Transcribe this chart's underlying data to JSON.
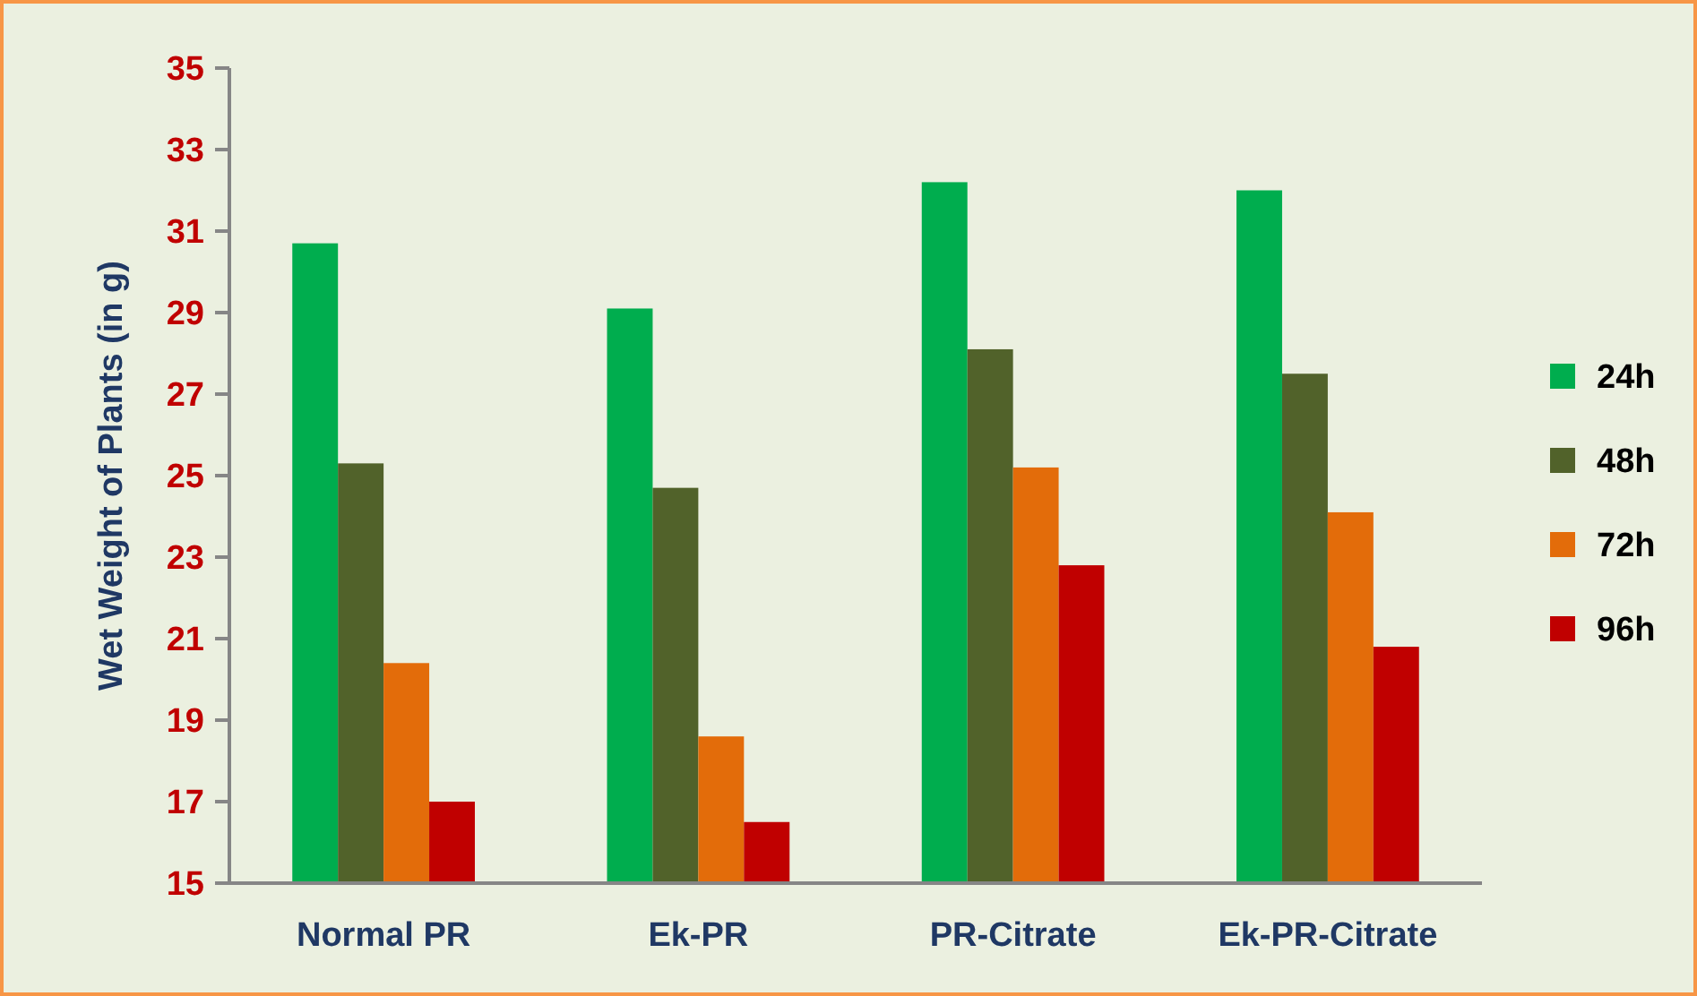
{
  "chart_data": {
    "type": "bar",
    "ylabel": "Wet Weight of Plants (in g)",
    "categories": [
      "Normal PR",
      "Ek-PR",
      "PR-Citrate",
      "Ek-PR-Citrate"
    ],
    "series": [
      {
        "name": "24h",
        "color": "#00ad4e",
        "values": [
          30.7,
          29.1,
          32.2,
          32.0
        ]
      },
      {
        "name": "48h",
        "color": "#51622a",
        "values": [
          25.3,
          24.7,
          28.1,
          27.5
        ]
      },
      {
        "name": "72h",
        "color": "#e36c0a",
        "values": [
          20.4,
          18.6,
          25.2,
          24.1
        ]
      },
      {
        "name": "96h",
        "color": "#c00000",
        "values": [
          17.0,
          16.5,
          22.8,
          20.8
        ]
      }
    ],
    "ylim": [
      15,
      35
    ],
    "yticks": [
      15,
      17,
      19,
      21,
      23,
      25,
      27,
      29,
      31,
      33,
      35
    ],
    "grid": false,
    "legend": "right"
  }
}
